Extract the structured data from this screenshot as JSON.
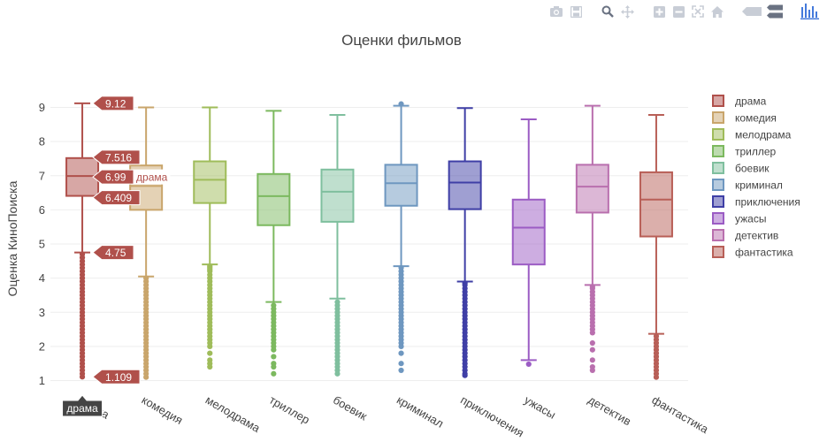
{
  "modebar": {
    "buttons": [
      "camera-icon",
      "save-icon",
      "zoom-icon",
      "pan-icon",
      "zoom-in-icon",
      "zoom-out-icon",
      "autoscale-icon",
      "home-icon",
      "hover-closest-icon",
      "hover-compare-icon",
      "plotly-logo-icon"
    ]
  },
  "chart_data": {
    "type": "box",
    "title": "Оценки фильмов",
    "ylabel": "Оценка КиноПоиска",
    "xlabel": "",
    "ylim": [
      0.8,
      9.45
    ],
    "yticks": [
      1,
      2,
      3,
      4,
      5,
      6,
      7,
      8,
      9
    ],
    "categories": [
      "драма",
      "комедия",
      "мелодрама",
      "триллер",
      "боевик",
      "криминал",
      "приключения",
      "ужасы",
      "детектив",
      "фантастика"
    ],
    "series": [
      {
        "name": "драма",
        "color": "#B0504B",
        "fill": "rgba(176,80,75,0.5)",
        "min": 4.75,
        "q1": 6.409,
        "median": 6.99,
        "q3": 7.516,
        "max": 9.12,
        "outliers": [
          4.7,
          4.6,
          4.5,
          4.4,
          4.3,
          4.2,
          4.1,
          4.0,
          3.9,
          3.8,
          3.7,
          3.6,
          3.5,
          3.4,
          3.3,
          3.2,
          3.1,
          3.0,
          2.9,
          2.8,
          2.7,
          2.6,
          2.5,
          2.4,
          2.3,
          2.2,
          2.1,
          2.0,
          1.9,
          1.8,
          1.7,
          1.6,
          1.5,
          1.4,
          1.3,
          1.2,
          1.109
        ]
      },
      {
        "name": "комедия",
        "color": "#C9A56B",
        "fill": "rgba(201,165,107,0.5)",
        "min": 4.05,
        "q1": 6.0,
        "median": 6.7,
        "q3": 7.3,
        "max": 9.0,
        "outliers": [
          4.0,
          3.9,
          3.8,
          3.7,
          3.6,
          3.5,
          3.4,
          3.3,
          3.2,
          3.1,
          3.0,
          2.9,
          2.8,
          2.7,
          2.6,
          2.5,
          2.4,
          2.3,
          2.2,
          2.1,
          2.0,
          1.9,
          1.8,
          1.7,
          1.6,
          1.5,
          1.4,
          1.3,
          1.2,
          1.1
        ]
      },
      {
        "name": "мелодрама",
        "color": "#9FBC5A",
        "fill": "rgba(159,188,90,0.5)",
        "min": 4.4,
        "q1": 6.2,
        "median": 6.88,
        "q3": 7.42,
        "max": 9.0,
        "outliers": [
          4.35,
          4.3,
          4.25,
          4.2,
          4.1,
          4.0,
          3.9,
          3.8,
          3.7,
          3.6,
          3.5,
          3.4,
          3.3,
          3.2,
          3.1,
          3.0,
          2.9,
          2.8,
          2.7,
          2.6,
          2.5,
          2.4,
          2.3,
          2.2,
          2.1,
          2.0,
          1.8,
          1.6,
          1.5,
          1.4
        ]
      },
      {
        "name": "триллер",
        "color": "#7CB95F",
        "fill": "rgba(124,185,95,0.5)",
        "min": 3.3,
        "q1": 5.55,
        "median": 6.4,
        "q3": 7.05,
        "max": 8.9,
        "outliers": [
          3.2,
          3.1,
          3.0,
          2.9,
          2.8,
          2.7,
          2.6,
          2.5,
          2.4,
          2.3,
          2.2,
          2.1,
          2.0,
          1.9,
          1.7,
          1.5,
          1.4,
          1.2
        ]
      },
      {
        "name": "боевик",
        "color": "#7FBF9E",
        "fill": "rgba(127,191,158,0.5)",
        "min": 3.4,
        "q1": 5.65,
        "median": 6.53,
        "q3": 7.18,
        "max": 8.78,
        "outliers": [
          3.3,
          3.2,
          3.1,
          3.0,
          2.9,
          2.8,
          2.7,
          2.6,
          2.5,
          2.4,
          2.3,
          2.2,
          2.1,
          2.0,
          1.9,
          1.8,
          1.7,
          1.6,
          1.5,
          1.4,
          1.3,
          1.2
        ]
      },
      {
        "name": "криминал",
        "color": "#6E97C0",
        "fill": "rgba(110,151,192,0.5)",
        "min": 4.35,
        "q1": 6.12,
        "median": 6.78,
        "q3": 7.32,
        "max": 9.05,
        "outliers": [
          4.3,
          4.2,
          4.1,
          4.0,
          3.9,
          3.8,
          3.7,
          3.6,
          3.5,
          3.4,
          3.3,
          3.2,
          3.1,
          3.0,
          2.9,
          2.8,
          2.7,
          2.6,
          2.5,
          2.4,
          2.3,
          2.2,
          2.1,
          2.0,
          1.8,
          1.5,
          1.3,
          9.1
        ]
      },
      {
        "name": "приключения",
        "color": "#3F3FA6",
        "fill": "rgba(63,63,166,0.5)",
        "min": 3.9,
        "q1": 6.02,
        "median": 6.8,
        "q3": 7.42,
        "max": 8.98,
        "outliers": [
          3.85,
          3.8,
          3.7,
          3.6,
          3.5,
          3.4,
          3.3,
          3.2,
          3.1,
          3.0,
          2.9,
          2.8,
          2.7,
          2.6,
          2.5,
          2.4,
          2.3,
          2.2,
          2.1,
          2.0,
          1.9,
          1.8,
          1.7,
          1.6,
          1.5,
          1.4,
          1.3,
          1.2,
          1.15
        ]
      },
      {
        "name": "ужасы",
        "color": "#9B5CC4",
        "fill": "rgba(155,92,196,0.5)",
        "min": 1.6,
        "q1": 4.4,
        "median": 5.48,
        "q3": 6.3,
        "max": 8.65,
        "outliers": [
          1.48
        ]
      },
      {
        "name": "детектив",
        "color": "#B96FAE",
        "fill": "rgba(185,111,174,0.5)",
        "min": 3.8,
        "q1": 5.92,
        "median": 6.68,
        "q3": 7.32,
        "max": 9.05,
        "outliers": [
          3.75,
          3.7,
          3.6,
          3.5,
          3.4,
          3.3,
          3.2,
          3.1,
          3.0,
          2.9,
          2.8,
          2.7,
          2.6,
          2.5,
          2.4,
          2.1,
          1.9,
          1.6,
          1.4,
          1.3
        ]
      },
      {
        "name": "фантастика",
        "color": "#B85F57",
        "fill": "rgba(184,95,87,0.5)",
        "min": 2.37,
        "q1": 5.22,
        "median": 6.3,
        "q3": 7.1,
        "max": 8.78,
        "outliers": [
          2.3,
          2.2,
          2.1,
          2.0,
          1.9,
          1.8,
          1.7,
          1.6,
          1.5,
          1.4,
          1.3,
          1.2,
          1.1
        ]
      }
    ],
    "hover": {
      "category_index": 0,
      "labels": [
        "9.12",
        "7.516",
        "6.99",
        "6.409",
        "4.75",
        "1.109"
      ],
      "median_trace_label": "драма",
      "x_label": "драма"
    },
    "legend_position": "right"
  }
}
